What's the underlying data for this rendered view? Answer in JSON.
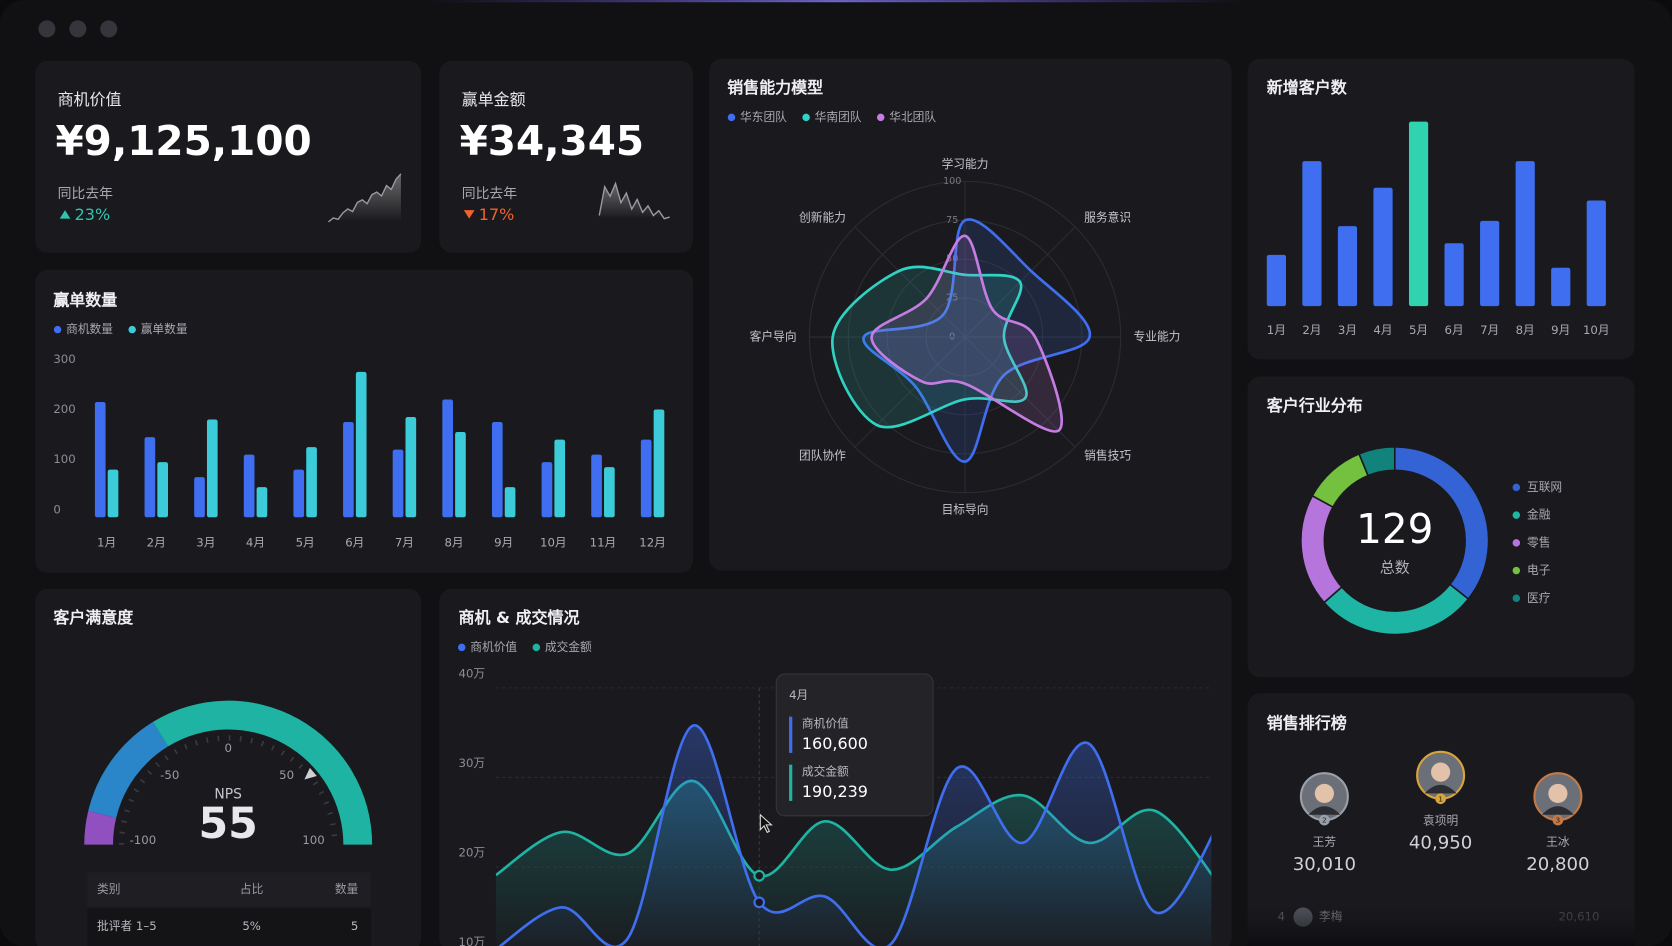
{
  "kpis": [
    {
      "title": "商机价值",
      "value": "¥9,125,100",
      "compare": "同比去年",
      "change": "23%",
      "direction": "up",
      "sparkline": [
        5,
        8,
        7,
        12,
        15,
        13,
        20,
        22,
        19,
        26,
        28,
        25,
        33,
        30,
        38,
        42
      ]
    },
    {
      "title": "赢单金额",
      "value": "¥34,345",
      "compare": "同比去年",
      "change": "17%",
      "direction": "down",
      "sparkline": [
        10,
        28,
        22,
        30,
        18,
        24,
        14,
        20,
        12,
        16,
        10,
        13,
        8,
        9
      ]
    }
  ],
  "chart_data": [
    {
      "type": "radar",
      "title": "销售能力模型",
      "axes": [
        "学习能力",
        "服务意识",
        "专业能力",
        "销售技巧",
        "目标导向",
        "团队协作",
        "客户导向",
        "创新能力"
      ],
      "rlim": [
        0,
        100
      ],
      "rticks": [
        0,
        25,
        50,
        75,
        100
      ],
      "series": [
        {
          "name": "华东团队",
          "color": "#3f6ff0",
          "values": [
            75,
            60,
            80,
            35,
            80,
            45,
            65,
            20
          ]
        },
        {
          "name": "华南团队",
          "color": "#2fd3c3",
          "values": [
            40,
            50,
            25,
            55,
            40,
            80,
            85,
            60
          ]
        },
        {
          "name": "华北团队",
          "color": "#c67de3",
          "values": [
            65,
            25,
            45,
            85,
            30,
            40,
            60,
            35
          ]
        }
      ]
    },
    {
      "type": "bar",
      "title": "新增客户数",
      "categories": [
        "1月",
        "2月",
        "3月",
        "4月",
        "5月",
        "6月",
        "7月",
        "8月",
        "9月",
        "10月"
      ],
      "values": [
        48,
        136,
        75,
        111,
        173,
        59,
        80,
        136,
        36,
        99
      ],
      "colors": [
        "#3f6ff0",
        "#3f6ff0",
        "#3f6ff0",
        "#3f6ff0",
        "#2fd3b0",
        "#3f6ff0",
        "#3f6ff0",
        "#3f6ff0",
        "#3f6ff0",
        "#3f6ff0"
      ],
      "ylim": [
        0,
        180
      ]
    },
    {
      "type": "bar",
      "title": "赢单数量",
      "categories": [
        "1月",
        "2月",
        "3月",
        "4月",
        "5月",
        "6月",
        "7月",
        "8月",
        "9月",
        "10月",
        "11月",
        "12月"
      ],
      "series": [
        {
          "name": "商机数量",
          "color": "#3f6ff0",
          "values": [
            230,
            160,
            80,
            125,
            95,
            190,
            135,
            235,
            190,
            110,
            125,
            155
          ]
        },
        {
          "name": "赢单数量",
          "color": "#3ccbd8",
          "values": [
            95,
            110,
            195,
            60,
            140,
            290,
            200,
            170,
            60,
            155,
            100,
            215
          ]
        }
      ],
      "ylim": [
        0,
        300
      ],
      "yticks": [
        0,
        100,
        200,
        300
      ]
    },
    {
      "type": "donut",
      "title": "客户行业分布",
      "center_value": "129",
      "center_label": "总数",
      "categories": [
        "互联网",
        "金融",
        "零售",
        "电子",
        "医疗"
      ],
      "values": [
        46,
        36,
        25,
        14,
        8
      ],
      "colors": [
        "#3463d6",
        "#1fb5a5",
        "#b575dc",
        "#73c13f",
        "#11837c"
      ]
    },
    {
      "type": "gauge",
      "title": "客户满意度",
      "label": "NPS",
      "value": 55,
      "lim": [
        -100,
        100
      ],
      "ticks": [
        -100,
        -50,
        0,
        50,
        100
      ],
      "bands": [
        {
          "from": -100,
          "to": -85,
          "color": "#9050c0"
        },
        {
          "from": -85,
          "to": -35,
          "color": "#2a86c9"
        },
        {
          "from": -35,
          "to": 100,
          "color": "#1fb3a3"
        }
      ],
      "table": {
        "columns": [
          "类别",
          "占比",
          "数量"
        ],
        "rows": [
          [
            "批评者 1–5",
            "5%",
            "5"
          ]
        ]
      }
    },
    {
      "type": "line",
      "title": "商机 & 成交情况",
      "categories": [
        null,
        null,
        null,
        null,
        "4月",
        null,
        null,
        null,
        null,
        null,
        null,
        null
      ],
      "series": [
        {
          "name": "商机价值",
          "color": "#3f6ff0",
          "values": [
            108000,
            155000,
            120000,
            358000,
            160600,
            167000,
            114000,
            310000,
            227000,
            338000,
            150000,
            251000
          ],
          "value_labels": [
            null,
            null,
            null,
            null,
            "160,600",
            null,
            null,
            null,
            null,
            null,
            null,
            null
          ]
        },
        {
          "name": "成交金额",
          "color": "#1fb3a3",
          "values": [
            191000,
            239000,
            215000,
            296000,
            190239,
            251000,
            197000,
            245000,
            280000,
            227000,
            263000,
            179000
          ],
          "value_labels": [
            null,
            null,
            null,
            null,
            "190,239",
            null,
            null,
            null,
            null,
            null,
            null,
            null
          ]
        }
      ],
      "ylim": [
        100000,
        400000
      ],
      "yticks": [
        {
          "value": 100000,
          "label": "10万"
        },
        {
          "value": 200000,
          "label": "20万"
        },
        {
          "value": 300000,
          "label": "30万"
        },
        {
          "value": 400000,
          "label": "40万"
        }
      ],
      "tooltip_index": 4
    }
  ],
  "ranking": {
    "title": "销售排行榜",
    "people": [
      {
        "rank": "1",
        "name": "袁项明",
        "value": 40950,
        "value_label": "40,950"
      },
      {
        "rank": "2",
        "name": "王芳",
        "value": 30010,
        "value_label": "30,010"
      },
      {
        "rank": "3",
        "name": "王冰",
        "value": 20800,
        "value_label": "20,800"
      },
      {
        "rank": "4",
        "name": "李梅",
        "value": 20610,
        "value_label": "20,610"
      }
    ]
  }
}
